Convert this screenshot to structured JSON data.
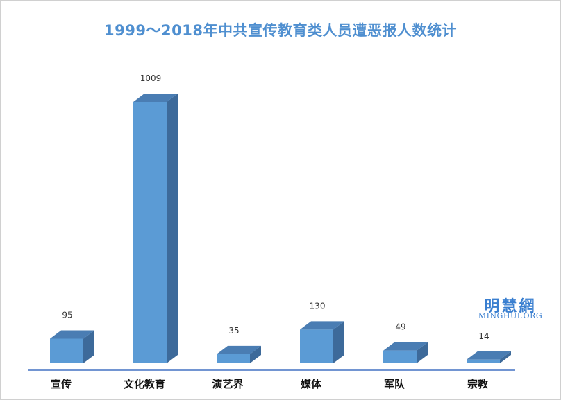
{
  "chart_data": {
    "type": "bar",
    "title": "1999～2018年中共宣传教育类人员遭恶报人数统计",
    "categories": [
      "宣传",
      "文化教育",
      "演艺界",
      "媒体",
      "军队",
      "宗教"
    ],
    "values": [
      95,
      1009,
      35,
      130,
      49,
      14
    ],
    "xlabel": "",
    "ylabel": "",
    "ylim": [
      0,
      1009
    ],
    "grid": false,
    "legend": "none",
    "colors": {
      "front": "#5b9bd5",
      "side": "#3d6a9a",
      "top": "#4a7db3",
      "axis": "#4472c4",
      "title": "#4f8fd0"
    }
  },
  "watermark": {
    "cn": "明慧網",
    "en": "MINGHUI.ORG"
  }
}
